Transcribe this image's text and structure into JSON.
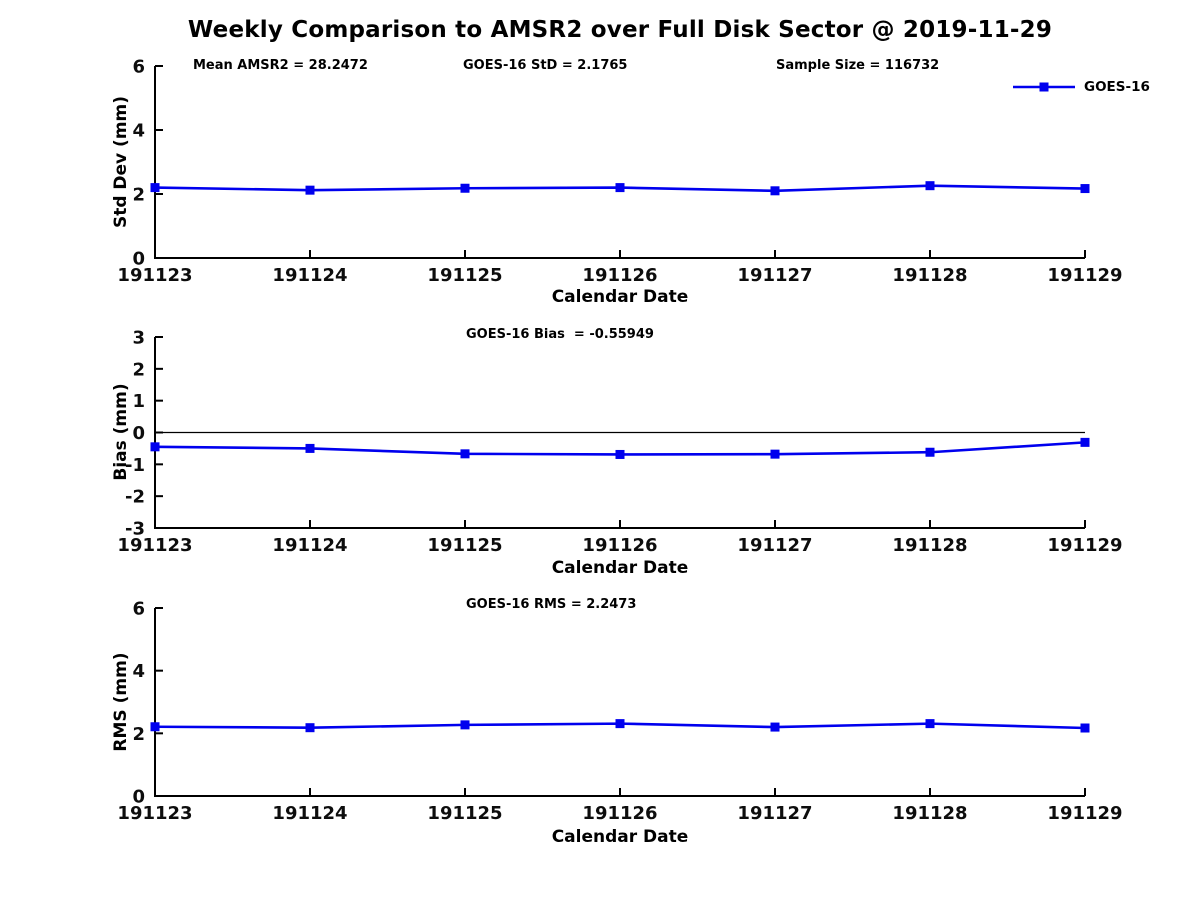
{
  "title": "Weekly Comparison to AMSR2 over Full Disk Sector @ 2019-11-29",
  "annotations": {
    "mean_amsr2": "Mean AMSR2 = 28.2472",
    "goes16_std": "GOES-16 StD = 2.1765",
    "sample_size": "Sample Size = 116732",
    "goes16_bias": "GOES-16 Bias  = -0.55949",
    "goes16_rms": "GOES-16 RMS = 2.2473"
  },
  "legend": {
    "label": "GOES-16",
    "color": "#0000EE",
    "position": "top-right"
  },
  "colors": {
    "series_blue": "#0000EE",
    "axis_black": "#000000",
    "background": "#ffffff"
  },
  "chart_data": [
    {
      "type": "line",
      "title": "",
      "x": [
        "191123",
        "191124",
        "191125",
        "191126",
        "191127",
        "191128",
        "191129"
      ],
      "series": [
        {
          "name": "GOES-16",
          "color": "#0000EE",
          "values": [
            2.2,
            2.12,
            2.18,
            2.2,
            2.1,
            2.26,
            2.17
          ]
        }
      ],
      "xlabel": "Calendar Date",
      "ylabel": "Std Dev (mm)",
      "ylim": [
        0,
        6
      ],
      "yticks": [
        0,
        2,
        4,
        6
      ],
      "zero_line": false,
      "grid": false,
      "marker": "square"
    },
    {
      "type": "line",
      "title": "",
      "x": [
        "191123",
        "191124",
        "191125",
        "191126",
        "191127",
        "191128",
        "191129"
      ],
      "series": [
        {
          "name": "GOES-16",
          "color": "#0000EE",
          "values": [
            -0.45,
            -0.5,
            -0.67,
            -0.69,
            -0.68,
            -0.62,
            -0.31
          ]
        }
      ],
      "xlabel": "Calendar Date",
      "ylabel": "Bias (mm)",
      "ylim": [
        -3,
        3
      ],
      "yticks": [
        -3,
        -2,
        -1,
        0,
        1,
        2,
        3
      ],
      "zero_line": true,
      "grid": false,
      "marker": "square"
    },
    {
      "type": "line",
      "title": "",
      "x": [
        "191123",
        "191124",
        "191125",
        "191126",
        "191127",
        "191128",
        "191129"
      ],
      "series": [
        {
          "name": "GOES-16",
          "color": "#0000EE",
          "values": [
            2.21,
            2.18,
            2.27,
            2.31,
            2.2,
            2.31,
            2.17
          ]
        }
      ],
      "xlabel": "Calendar Date",
      "ylabel": "RMS (mm)",
      "ylim": [
        0,
        6
      ],
      "yticks": [
        0,
        2,
        4,
        6
      ],
      "zero_line": false,
      "grid": false,
      "marker": "square"
    }
  ]
}
